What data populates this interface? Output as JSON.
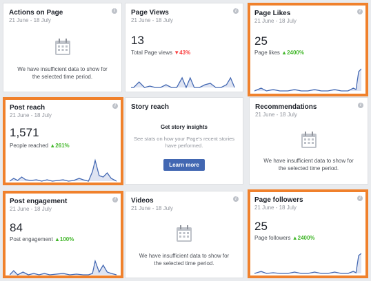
{
  "cards": {
    "actions": {
      "title": "Actions on Page",
      "date": "21 June - 18 July",
      "message": "We have insufficient data to show for the selected time period."
    },
    "views": {
      "title": "Page Views",
      "date": "21 June - 18 July",
      "value": "13",
      "sub_label": "Total Page views",
      "change": "▼43%"
    },
    "likes": {
      "title": "Page Likes",
      "date": "21 June - 18 July",
      "value": "25",
      "sub_label": "Page likes",
      "change": "▲2400%"
    },
    "reach": {
      "title": "Post reach",
      "date": "21 June - 18 July",
      "value": "1,571",
      "sub_label": "People reached",
      "change": "▲261%"
    },
    "story": {
      "title": "Story reach",
      "heading": "Get story insights",
      "message": "See stats on how your Page's recent stories have performed.",
      "button": "Learn more"
    },
    "recs": {
      "title": "Recommendations",
      "date": "21 June - 18 July",
      "message": "We have insufficient data to show for the selected time period."
    },
    "engagement": {
      "title": "Post engagement",
      "date": "21 June - 18 July",
      "value": "84",
      "sub_label": "Post engagement",
      "change": "▲100%"
    },
    "videos": {
      "title": "Videos",
      "date": "21 June - 18 July",
      "message": "We have insufficient data to show for the selected time period."
    },
    "followers": {
      "title": "Page followers",
      "date": "21 June - 18 July",
      "value": "25",
      "sub_label": "Page followers",
      "change": "▲2400%"
    }
  },
  "info_glyph": "i",
  "colors": {
    "highlight": "#f0812c",
    "line": "#4267b2",
    "fill": "#dfe4f2",
    "up": "#42b72a",
    "down": "#fa3e3e",
    "button": "#4267b2"
  },
  "icons": {
    "empty_state": "calendar-icon",
    "info": "info-icon"
  }
}
